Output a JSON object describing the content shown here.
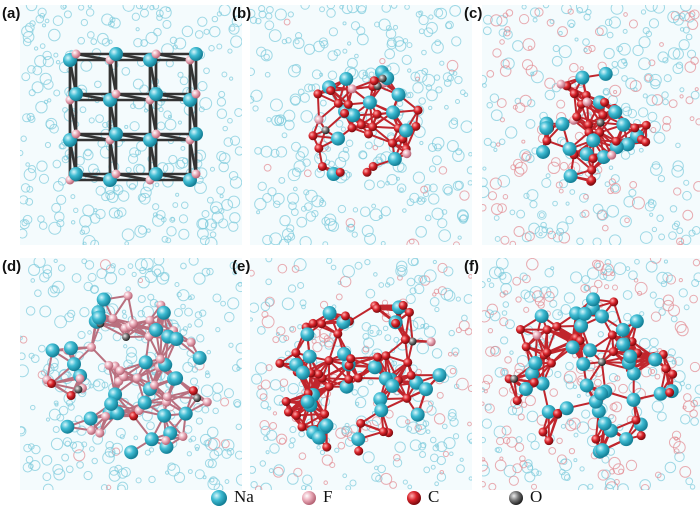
{
  "panels": [
    {
      "label": "(a)"
    },
    {
      "label": "(b)"
    },
    {
      "label": "(c)"
    },
    {
      "label": "(d)"
    },
    {
      "label": "(e)"
    },
    {
      "label": "(f)"
    }
  ],
  "legend": [
    {
      "label": "Na"
    },
    {
      "label": "F"
    },
    {
      "label": "C"
    },
    {
      "label": "O"
    }
  ]
}
